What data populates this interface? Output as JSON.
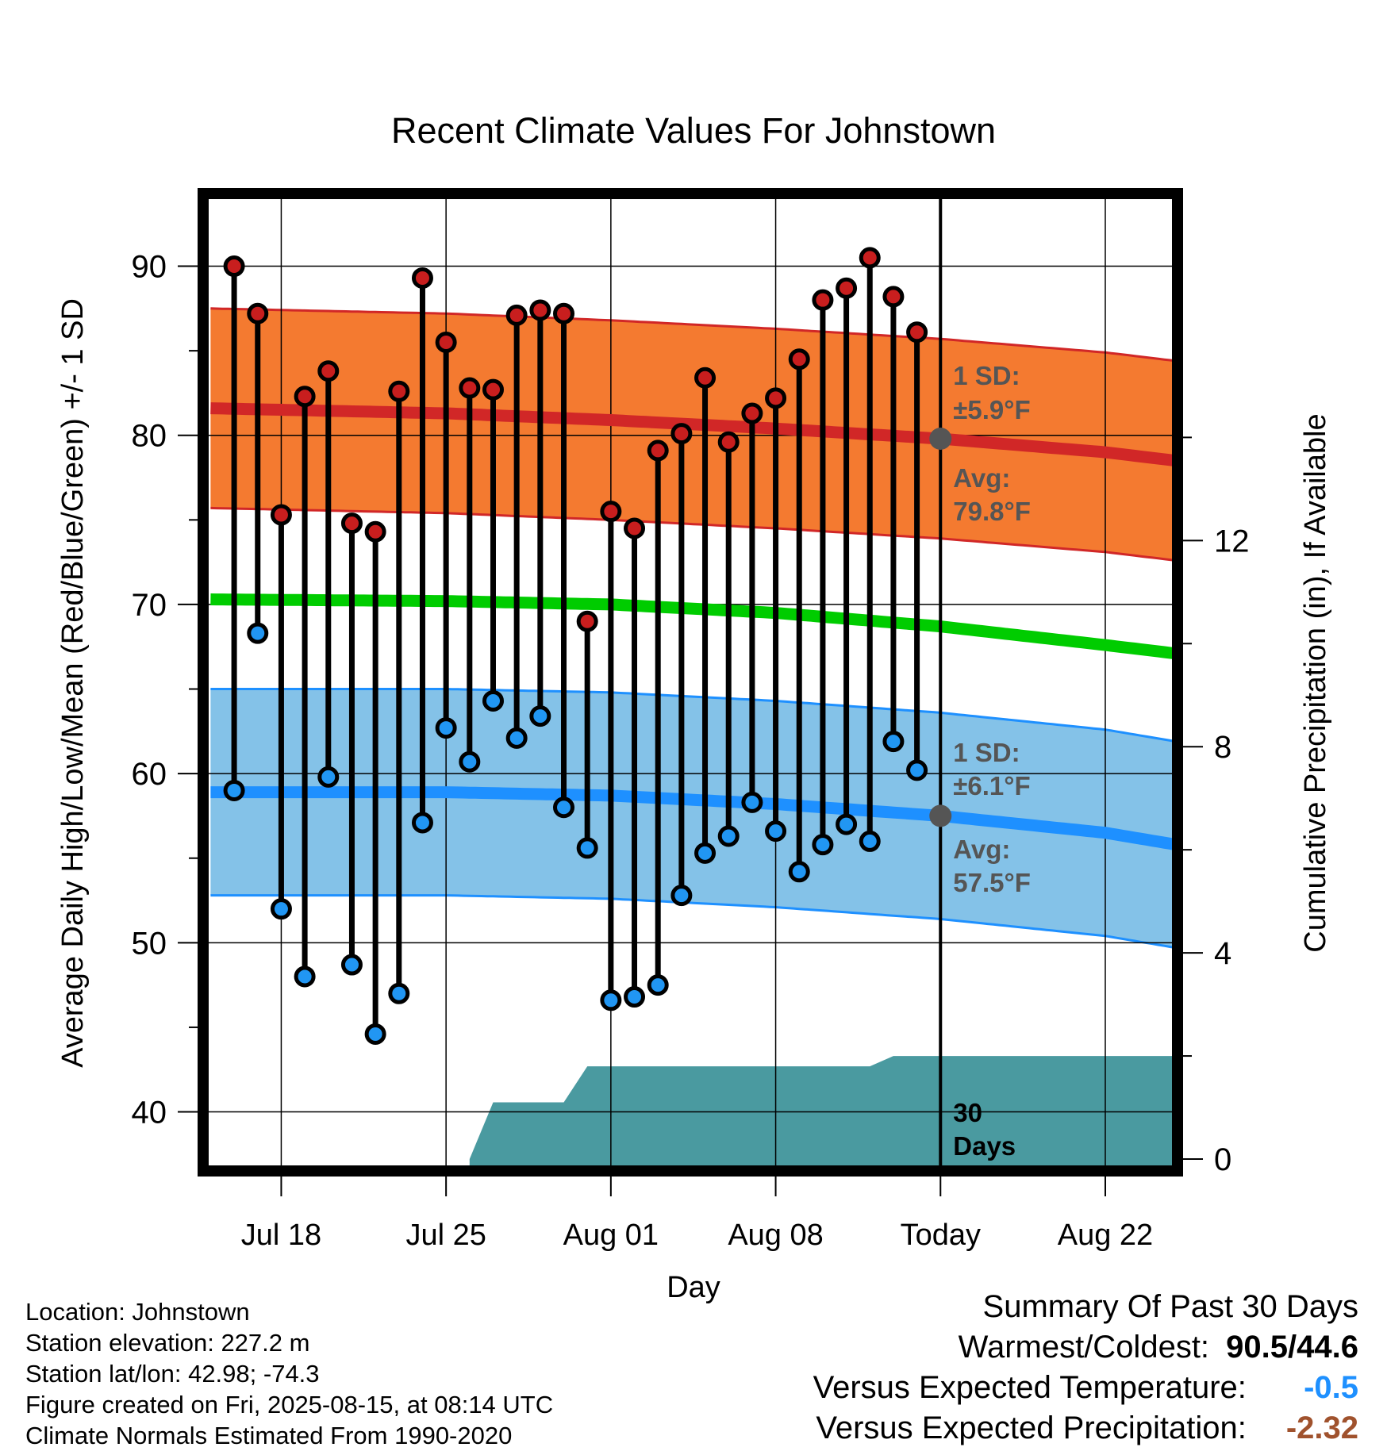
{
  "chart_data": {
    "type": "line",
    "title": "Recent Climate Values For Johnstown",
    "xlabel": "Day",
    "ylabel": "Average Daily High/Low/Mean (Red/Blue/Green) +/- 1 SD",
    "y2label": "Cumulative Precipitation (in), If Available",
    "ylim": [
      36.6,
      94.2
    ],
    "y2lim": [
      -0.2,
      18.7
    ],
    "yticks": [
      40,
      50,
      60,
      70,
      80,
      90
    ],
    "y2ticks": [
      0,
      4,
      8,
      12
    ],
    "xticks": [
      {
        "day": 18,
        "label": "Jul 18"
      },
      {
        "day": 25,
        "label": "Jul 25"
      },
      {
        "day": 32,
        "label": "Aug 01"
      },
      {
        "day": 39,
        "label": "Aug 08"
      },
      {
        "day": 46,
        "label": "Today"
      },
      {
        "day": 53,
        "label": "Aug 22"
      }
    ],
    "xlim": [
      14.75,
      56.0
    ],
    "today": 46,
    "days": [
      16,
      17,
      18,
      19,
      20,
      21,
      22,
      23,
      24,
      25,
      26,
      27,
      28,
      29,
      30,
      31,
      32,
      33,
      34,
      35,
      36,
      37,
      38,
      39,
      40,
      41,
      42,
      43,
      44,
      45
    ],
    "highs": [
      90.0,
      87.2,
      75.3,
      82.3,
      83.8,
      74.8,
      74.3,
      82.6,
      89.3,
      85.5,
      82.8,
      82.7,
      87.1,
      87.4,
      87.2,
      69.0,
      75.5,
      74.5,
      79.1,
      80.1,
      83.4,
      79.6,
      81.3,
      82.2,
      84.5,
      88.0,
      88.7,
      90.5,
      88.2,
      86.1
    ],
    "lows": [
      59.0,
      68.3,
      52.0,
      48.0,
      59.8,
      48.7,
      44.6,
      47.0,
      57.1,
      62.7,
      60.7,
      64.3,
      62.1,
      63.4,
      58.0,
      55.6,
      46.6,
      46.8,
      47.5,
      52.8,
      55.3,
      56.3,
      58.3,
      56.6,
      54.2,
      55.8,
      57.0,
      56.0,
      61.9,
      60.2
    ],
    "normals": {
      "x": [
        15,
        25,
        32,
        39,
        46,
        53,
        56
      ],
      "high_avg": [
        81.6,
        81.3,
        80.9,
        80.4,
        79.8,
        79.0,
        78.5
      ],
      "high_sd": 5.9,
      "low_avg": [
        58.9,
        58.9,
        58.7,
        58.2,
        57.5,
        56.5,
        55.8
      ],
      "low_sd": 6.1,
      "mean_avg": [
        70.3,
        70.2,
        70.0,
        69.5,
        68.7,
        67.6,
        67.1
      ]
    },
    "precip": {
      "x": [
        26,
        27,
        30,
        31,
        43,
        44,
        56
      ],
      "y": [
        0.0,
        1.1,
        1.1,
        1.8,
        1.8,
        2.0,
        2.0
      ]
    },
    "annotations": {
      "high_sd_label": "1 SD:",
      "high_sd_value": "±5.9°F",
      "high_avg_label": "Avg:",
      "high_avg_value": "79.8°F",
      "low_sd_label": "1 SD:",
      "low_sd_value": "±6.1°F",
      "low_avg_label": "Avg:",
      "low_avg_value": "57.5°F",
      "precip_label_1": "30",
      "precip_label_2": "Days"
    },
    "colors": {
      "high_band": "#f47a30",
      "high_line": "#d12727",
      "low_band": "#84c2e8",
      "low_line": "#1e90ff",
      "mean_line": "#00cc00",
      "precip": "#4a9aa0",
      "high_dot": "#c81e1e",
      "low_dot": "#2196f3",
      "annotation": "#555555"
    }
  },
  "info": {
    "location": "Location: Johnstown",
    "elevation": "Station elevation: 227.2 m",
    "latlon": "Station lat/lon: 42.98; -74.3",
    "created": "Figure created on Fri, 2025-08-15, at 08:14 UTC",
    "normals": "Climate Normals Estimated From 1990-2020"
  },
  "summary": {
    "heading": "Summary Of Past 30 Days",
    "warm_cold_label": "Warmest/Coldest:",
    "warm_cold_value": "90.5/44.6",
    "temp_label": "Versus Expected Temperature:",
    "temp_value": "-0.5",
    "temp_color": "#1e90ff",
    "precip_label": "Versus Expected Precipitation:",
    "precip_value": "-2.32",
    "precip_color": "#a0522d"
  }
}
